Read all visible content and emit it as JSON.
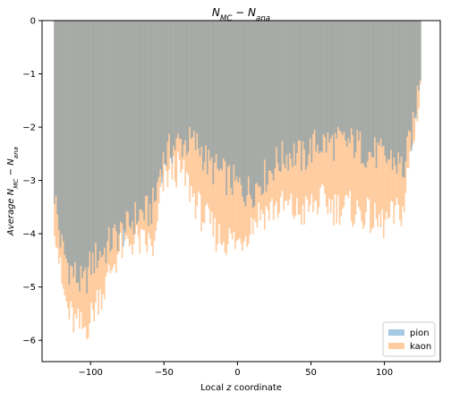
{
  "chart_data": {
    "type": "bar",
    "title": "N_MC - N_ana",
    "xlabel": "Local z coordinate",
    "ylabel": "Average N_MC - N_ana",
    "xlim": [
      -133,
      138
    ],
    "ylim": [
      -6.4,
      0
    ],
    "x_ticks": [
      -100,
      -50,
      0,
      50,
      100
    ],
    "x_tick_labels": [
      "−100",
      "−50",
      "0",
      "50",
      "100"
    ],
    "y_ticks": [
      0,
      -1,
      -2,
      -3,
      -4,
      -5,
      -6
    ],
    "y_tick_labels": [
      "0",
      "−1",
      "−2",
      "−3",
      "−4",
      "−5",
      "−6"
    ],
    "grid": false,
    "legend_position": "lower-right",
    "bin_range": [
      -125,
      125
    ],
    "bin_width": 1,
    "series": [
      {
        "name": "pion",
        "color": "#1f77b4",
        "opacity": 0.4,
        "profile": [
          [
            -125,
            -3.1
          ],
          [
            -122,
            -3.8
          ],
          [
            -120,
            -4.2
          ],
          [
            -115,
            -4.6
          ],
          [
            -110,
            -4.8
          ],
          [
            -105,
            -5.0
          ],
          [
            -100,
            -4.6
          ],
          [
            -95,
            -4.4
          ],
          [
            -90,
            -4.3
          ],
          [
            -85,
            -4.1
          ],
          [
            -80,
            -4.0
          ],
          [
            -75,
            -3.9
          ],
          [
            -70,
            -3.7
          ],
          [
            -65,
            -3.6
          ],
          [
            -60,
            -3.6
          ],
          [
            -56,
            -3.4
          ],
          [
            -53,
            -2.8
          ],
          [
            -50,
            -2.6
          ],
          [
            -45,
            -2.4
          ],
          [
            -40,
            -2.3
          ],
          [
            -35,
            -2.3
          ],
          [
            -30,
            -2.3
          ],
          [
            -25,
            -2.4
          ],
          [
            -20,
            -2.7
          ],
          [
            -15,
            -2.8
          ],
          [
            -10,
            -2.9
          ],
          [
            -5,
            -3.0
          ],
          [
            0,
            -3.1
          ],
          [
            5,
            -3.2
          ],
          [
            10,
            -3.2
          ],
          [
            15,
            -3.0
          ],
          [
            20,
            -2.9
          ],
          [
            25,
            -2.7
          ],
          [
            30,
            -2.6
          ],
          [
            35,
            -2.5
          ],
          [
            40,
            -2.5
          ],
          [
            45,
            -2.6
          ],
          [
            50,
            -2.4
          ],
          [
            55,
            -2.3
          ],
          [
            60,
            -2.3
          ],
          [
            65,
            -2.3
          ],
          [
            70,
            -2.3
          ],
          [
            75,
            -2.3
          ],
          [
            80,
            -2.3
          ],
          [
            85,
            -2.4
          ],
          [
            90,
            -2.5
          ],
          [
            95,
            -2.5
          ],
          [
            100,
            -2.6
          ],
          [
            105,
            -2.6
          ],
          [
            110,
            -2.7
          ],
          [
            114,
            -2.8
          ],
          [
            116,
            -2.4
          ],
          [
            118,
            -2.2
          ],
          [
            120,
            -2.0
          ],
          [
            122,
            -1.5
          ],
          [
            124,
            -1.0
          ],
          [
            125,
            -0.8
          ]
        ]
      },
      {
        "name": "kaon",
        "color": "#ff7f0e",
        "opacity": 0.4,
        "profile": [
          [
            -125,
            -3.6
          ],
          [
            -122,
            -4.3
          ],
          [
            -120,
            -4.9
          ],
          [
            -115,
            -5.5
          ],
          [
            -110,
            -5.7
          ],
          [
            -105,
            -5.8
          ],
          [
            -100,
            -5.6
          ],
          [
            -95,
            -5.2
          ],
          [
            -90,
            -5.0
          ],
          [
            -85,
            -4.6
          ],
          [
            -80,
            -4.3
          ],
          [
            -75,
            -4.2
          ],
          [
            -70,
            -4.1
          ],
          [
            -65,
            -4.2
          ],
          [
            -60,
            -4.2
          ],
          [
            -56,
            -4.3
          ],
          [
            -53,
            -3.4
          ],
          [
            -50,
            -3.0
          ],
          [
            -45,
            -2.8
          ],
          [
            -40,
            -2.8
          ],
          [
            -35,
            -3.0
          ],
          [
            -30,
            -3.3
          ],
          [
            -25,
            -3.6
          ],
          [
            -20,
            -3.8
          ],
          [
            -15,
            -4.0
          ],
          [
            -10,
            -4.1
          ],
          [
            -5,
            -4.1
          ],
          [
            0,
            -4.2
          ],
          [
            5,
            -4.0
          ],
          [
            10,
            -3.8
          ],
          [
            15,
            -3.6
          ],
          [
            20,
            -3.6
          ],
          [
            25,
            -3.5
          ],
          [
            30,
            -3.5
          ],
          [
            35,
            -3.5
          ],
          [
            40,
            -3.6
          ],
          [
            45,
            -3.6
          ],
          [
            50,
            -3.5
          ],
          [
            55,
            -3.4
          ],
          [
            60,
            -3.4
          ],
          [
            65,
            -3.5
          ],
          [
            70,
            -3.5
          ],
          [
            75,
            -3.5
          ],
          [
            80,
            -3.6
          ],
          [
            85,
            -3.6
          ],
          [
            90,
            -3.7
          ],
          [
            95,
            -3.8
          ],
          [
            100,
            -3.8
          ],
          [
            105,
            -3.7
          ],
          [
            110,
            -3.6
          ],
          [
            114,
            -3.5
          ],
          [
            116,
            -2.8
          ],
          [
            118,
            -2.5
          ],
          [
            120,
            -2.2
          ],
          [
            122,
            -1.8
          ],
          [
            124,
            -1.3
          ],
          [
            125,
            -1.1
          ]
        ]
      }
    ]
  }
}
